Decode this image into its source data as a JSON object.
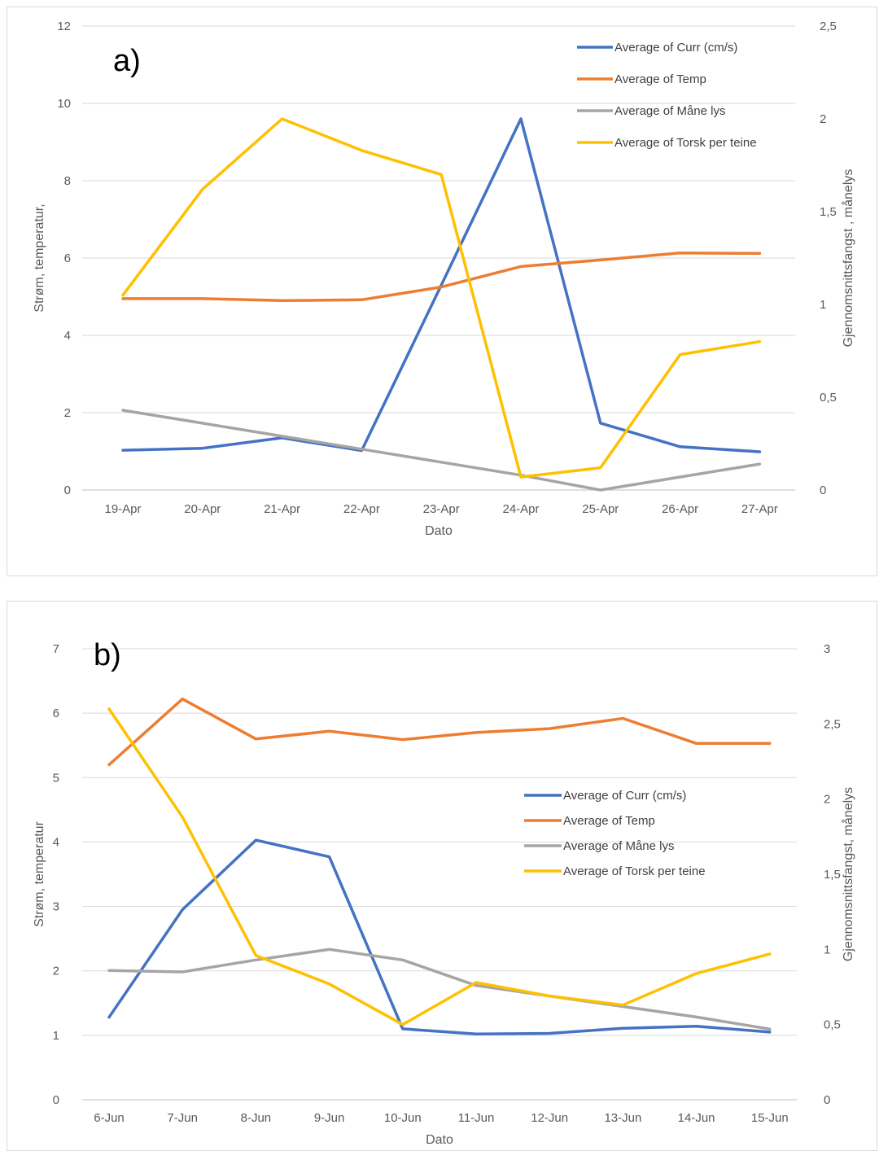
{
  "chart_data": [
    {
      "type": "line",
      "panel_label": "a)",
      "categories": [
        "19-Apr",
        "20-Apr",
        "21-Apr",
        "22-Apr",
        "23-Apr",
        "24-Apr",
        "25-Apr",
        "26-Apr",
        "27-Apr"
      ],
      "xlabel": "Dato",
      "ylabel": "Strøm, temperatur,",
      "y2label": "Gjennomsnittsfangst , månelys",
      "ylim": [
        0,
        12
      ],
      "y2lim": [
        0,
        2.5
      ],
      "yticks": [
        "0",
        "2",
        "4",
        "6",
        "8",
        "10",
        "12"
      ],
      "y2ticks": [
        "0",
        "0,5",
        "1",
        "1,5",
        "2",
        "2,5"
      ],
      "grid": true,
      "legend_position": "top-right",
      "series": [
        {
          "name": "Average of Curr (cm/s)",
          "axis": "left",
          "color": "#4472C4",
          "values": [
            1.03,
            1.08,
            1.35,
            1.02,
            5.3,
            9.6,
            1.73,
            1.12,
            0.99
          ]
        },
        {
          "name": "Average of Temp",
          "axis": "left",
          "color": "#ED7D31",
          "values": [
            4.95,
            4.95,
            4.9,
            4.92,
            5.25,
            5.78,
            5.95,
            6.13,
            6.12
          ]
        },
        {
          "name": "Average of Måne lys",
          "axis": "right",
          "color": "#A5A5A5",
          "values": [
            0.43,
            0.36,
            0.29,
            0.22,
            0.15,
            0.08,
            0.0,
            0.07,
            0.14
          ]
        },
        {
          "name": "Average of Torsk per teine",
          "axis": "right",
          "color": "#FFC000",
          "values": [
            1.05,
            1.62,
            2.0,
            1.83,
            1.7,
            0.07,
            0.12,
            0.73,
            0.8
          ]
        }
      ]
    },
    {
      "type": "line",
      "panel_label": "b)",
      "categories": [
        "6-Jun",
        "7-Jun",
        "8-Jun",
        "9-Jun",
        "10-Jun",
        "11-Jun",
        "12-Jun",
        "13-Jun",
        "14-Jun",
        "15-Jun"
      ],
      "xlabel": "Dato",
      "ylabel": "Strøm, temperatur",
      "y2label": "Gjennomsnittsfangst, månelys",
      "ylim": [
        0,
        7
      ],
      "y2lim": [
        0,
        3
      ],
      "yticks": [
        "0",
        "1",
        "2",
        "3",
        "4",
        "5",
        "6",
        "7"
      ],
      "y2ticks": [
        "0",
        "0,5",
        "1",
        "1,5",
        "2",
        "2,5",
        "3"
      ],
      "grid": true,
      "legend_position": "right",
      "series": [
        {
          "name": "Average of Curr (cm/s)",
          "axis": "left",
          "color": "#4472C4",
          "values": [
            1.28,
            2.95,
            4.03,
            3.77,
            1.1,
            1.02,
            1.03,
            1.11,
            1.14,
            1.05
          ]
        },
        {
          "name": "Average of Temp",
          "axis": "left",
          "color": "#ED7D31",
          "values": [
            5.2,
            6.22,
            5.6,
            5.72,
            5.59,
            5.7,
            5.76,
            5.92,
            5.53,
            5.53
          ]
        },
        {
          "name": "Average of Måne lys",
          "axis": "right",
          "color": "#A5A5A5",
          "values": [
            0.86,
            0.85,
            0.93,
            1.0,
            0.93,
            0.76,
            0.69,
            0.62,
            0.55,
            0.47
          ]
        },
        {
          "name": "Average of Torsk per teine",
          "axis": "right",
          "color": "#FFC000",
          "values": [
            2.6,
            1.88,
            0.96,
            0.77,
            0.5,
            0.78,
            0.69,
            0.63,
            0.84,
            0.97
          ]
        }
      ]
    }
  ]
}
